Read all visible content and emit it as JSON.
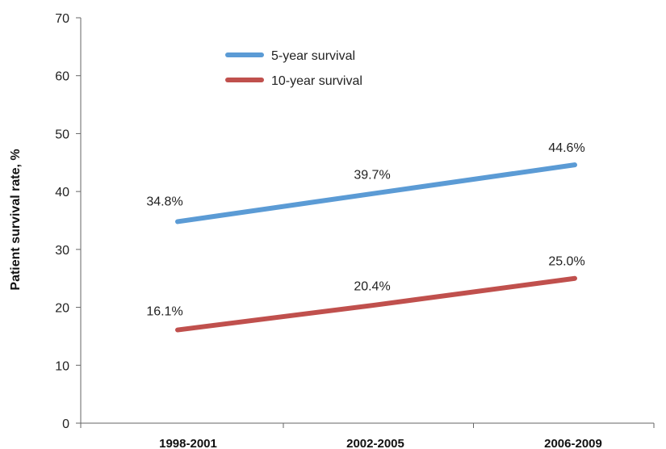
{
  "chart_data": {
    "type": "line",
    "categories": [
      "1998-2001",
      "2002-2005",
      "2006-2009"
    ],
    "ylabel": "Patient survival rate, %",
    "ylim": [
      0,
      70
    ],
    "yticks": [
      0,
      10,
      20,
      30,
      40,
      50,
      60,
      70
    ],
    "grid": false,
    "legend_position": "top-left",
    "series": [
      {
        "name": "5-year survival",
        "values": [
          34.8,
          39.7,
          44.6
        ],
        "labels": [
          "34.8%",
          "39.7%",
          "44.6%"
        ],
        "color": "#5b9bd5"
      },
      {
        "name": "10-year survival",
        "values": [
          16.1,
          20.4,
          25.0
        ],
        "labels": [
          "16.1%",
          "20.4%",
          "25.0%"
        ],
        "color": "#c0504d"
      }
    ]
  }
}
